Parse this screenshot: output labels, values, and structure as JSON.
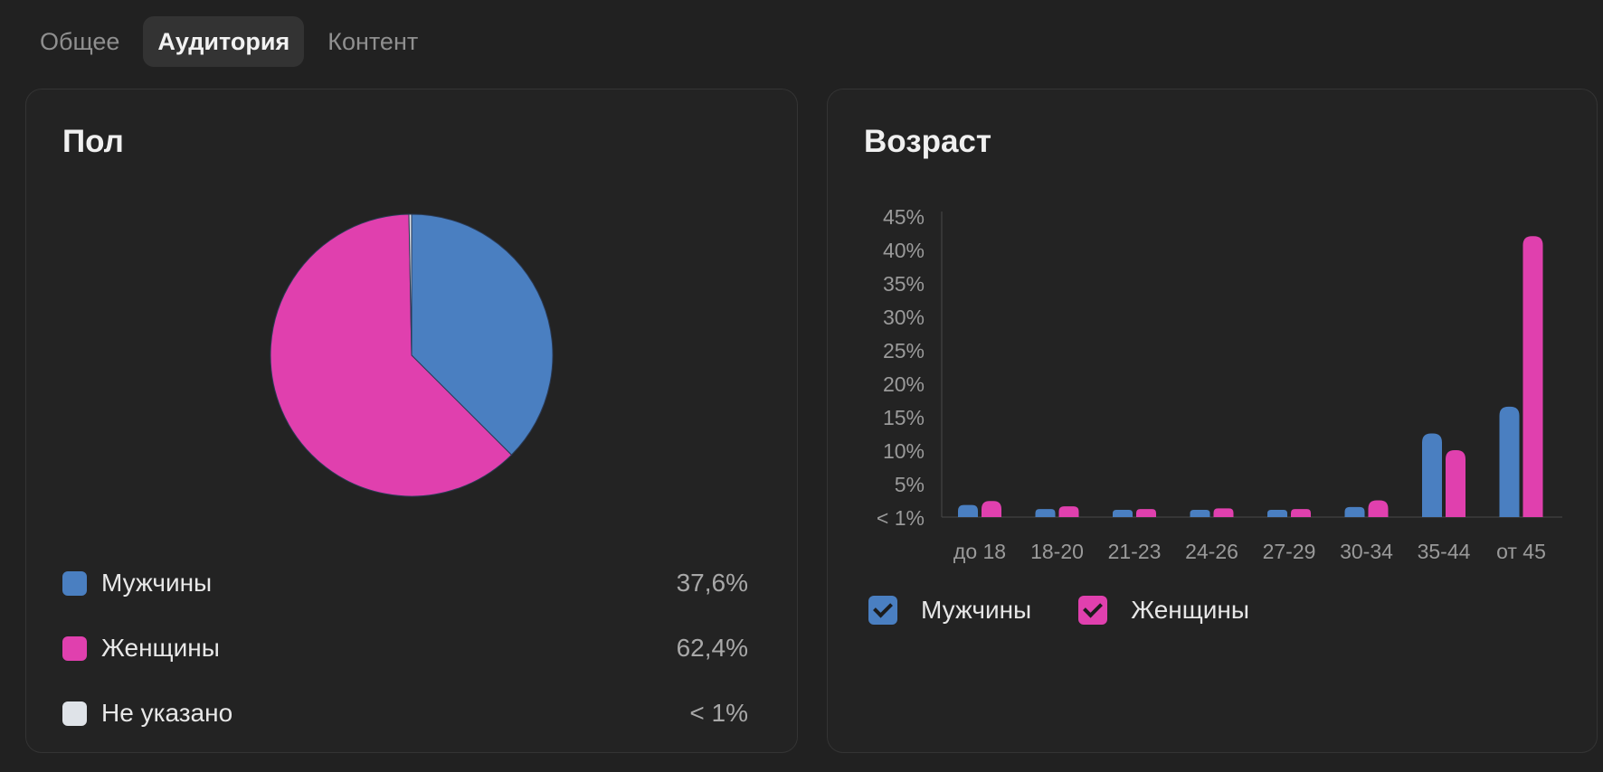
{
  "tabs": [
    {
      "label": "Общее",
      "active": false
    },
    {
      "label": "Аудитория",
      "active": true
    },
    {
      "label": "Контент",
      "active": false
    }
  ],
  "gender": {
    "title": "Пол",
    "items": [
      {
        "label": "Мужчины",
        "value": "37,6%",
        "color": "#4a7fc1"
      },
      {
        "label": "Женщины",
        "value": "62,4%",
        "color": "#e040ae"
      },
      {
        "label": "Не указано",
        "value": "< 1%",
        "color": "#dfe3e8"
      }
    ]
  },
  "age": {
    "title": "Возраст",
    "legend": [
      {
        "label": "Мужчины",
        "color": "#4a7fc1",
        "checked": true
      },
      {
        "label": "Женщины",
        "color": "#e040ae",
        "checked": true
      }
    ]
  },
  "chart_data": [
    {
      "type": "pie",
      "labels": [
        "Мужчины",
        "Женщины",
        "Не указано"
      ],
      "values": [
        37.6,
        62.4,
        0.3
      ],
      "colors": [
        "#4a7fc1",
        "#e040ae",
        "#dfe3e8"
      ]
    },
    {
      "type": "bar",
      "categories": [
        "до 18",
        "18-20",
        "21-23",
        "24-26",
        "27-29",
        "30-34",
        "35-44",
        "от 45"
      ],
      "series": [
        {
          "name": "Мужчины",
          "color": "#4a7fc1",
          "values": [
            1.8,
            1.2,
            0.8,
            0.9,
            0.9,
            1.5,
            12.5,
            16.5
          ]
        },
        {
          "name": "Женщины",
          "color": "#e040ae",
          "values": [
            2.4,
            1.6,
            1.2,
            1.3,
            1.2,
            2.5,
            10.0,
            42.0
          ]
        }
      ],
      "yticks": [
        "< 1%",
        "5%",
        "10%",
        "15%",
        "20%",
        "25%",
        "30%",
        "35%",
        "40%",
        "45%"
      ],
      "ylim": [
        0,
        45
      ]
    }
  ]
}
